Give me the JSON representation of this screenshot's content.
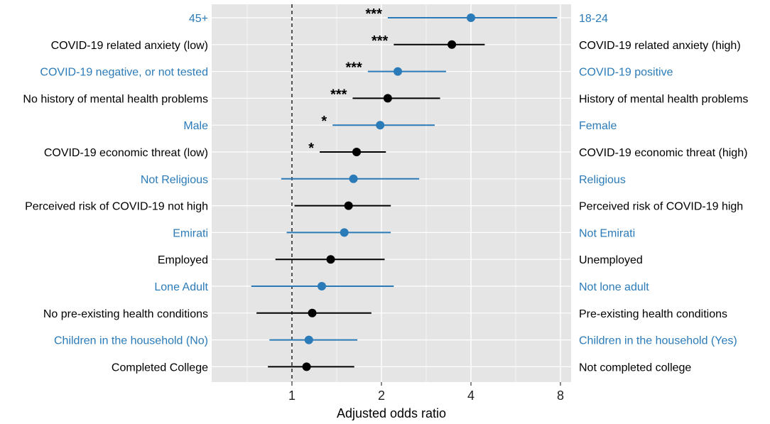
{
  "chart_data": {
    "type": "forest",
    "xlabel": "Adjusted odds ratio",
    "x_scale": "log2",
    "xlim": [
      0.5,
      9
    ],
    "x_ticks": [
      {
        "value": 1,
        "label": "1"
      },
      {
        "value": 2,
        "label": "2"
      },
      {
        "value": 4,
        "label": "4"
      },
      {
        "value": 8,
        "label": "8"
      }
    ],
    "reference_line": 1,
    "colors": {
      "blue": "#2b7bb9",
      "black": "#000000",
      "panel": "#e5e5e5",
      "grid": "#ffffff"
    },
    "rows": [
      {
        "left": "45+",
        "right": "18-24",
        "or": 4.0,
        "lo": 2.1,
        "hi": 7.8,
        "sig": "***",
        "color": "blue"
      },
      {
        "left": "COVID-19 related anxiety (low)",
        "right": "COVID-19 related anxiety (high)",
        "or": 3.45,
        "lo": 2.2,
        "hi": 4.45,
        "sig": "***",
        "color": "black"
      },
      {
        "left": "COVID-19 negative, or not tested",
        "right": "COVID-19 positive",
        "or": 2.27,
        "lo": 1.8,
        "hi": 3.3,
        "sig": "***",
        "color": "blue"
      },
      {
        "left": "No history of mental health problems",
        "right": "History of mental health problems",
        "or": 2.1,
        "lo": 1.6,
        "hi": 3.15,
        "sig": "***",
        "color": "black"
      },
      {
        "left": "Male",
        "right": "Female",
        "or": 1.98,
        "lo": 1.37,
        "hi": 3.02,
        "sig": "*",
        "color": "blue"
      },
      {
        "left": "COVID-19 economic threat (low)",
        "right": "COVID-19 economic threat (high)",
        "or": 1.65,
        "lo": 1.24,
        "hi": 2.07,
        "sig": "*",
        "color": "black"
      },
      {
        "left": "Not Religious",
        "right": "Religious",
        "or": 1.61,
        "lo": 0.92,
        "hi": 2.68,
        "sig": "",
        "color": "blue"
      },
      {
        "left": "Perceived risk of COVID-19 not high",
        "right": "Perceived risk of COVID-19 high",
        "or": 1.55,
        "lo": 1.02,
        "hi": 2.15,
        "sig": "",
        "color": "black"
      },
      {
        "left": "Emirati",
        "right": "Not Emirati",
        "or": 1.5,
        "lo": 0.96,
        "hi": 2.15,
        "sig": "",
        "color": "blue"
      },
      {
        "left": "Employed",
        "right": "Unemployed",
        "or": 1.35,
        "lo": 0.88,
        "hi": 2.05,
        "sig": "",
        "color": "black"
      },
      {
        "left": "Lone Adult",
        "right": "Not lone adult",
        "or": 1.26,
        "lo": 0.73,
        "hi": 2.2,
        "sig": "",
        "color": "blue"
      },
      {
        "left": "No pre-existing health conditions",
        "right": "Pre-existing health conditions",
        "or": 1.17,
        "lo": 0.76,
        "hi": 1.85,
        "sig": "",
        "color": "black"
      },
      {
        "left": "Children in the household (No)",
        "right": "Children in the household (Yes)",
        "or": 1.14,
        "lo": 0.84,
        "hi": 1.66,
        "sig": "",
        "color": "blue"
      },
      {
        "left": "Completed College",
        "right": "Not completed college",
        "or": 1.12,
        "lo": 0.83,
        "hi": 1.62,
        "sig": "",
        "color": "black"
      }
    ]
  }
}
